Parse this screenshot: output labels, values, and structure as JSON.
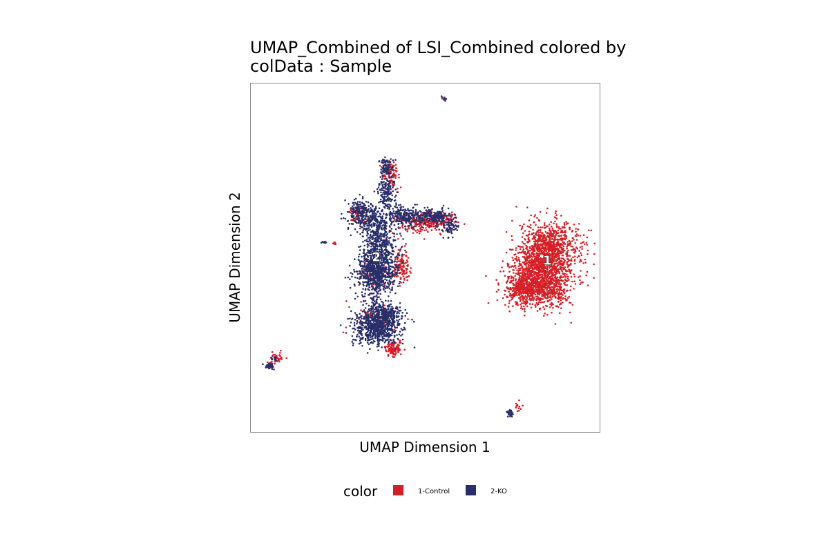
{
  "chart_data": {
    "type": "scatter",
    "title_line1": "UMAP_Combined of LSI_Combined  colored by",
    "title_line2": "colData :  Sample",
    "xlabel": "UMAP Dimension 1",
    "ylabel": "UMAP Dimension 2",
    "xlim": [
      0,
      100
    ],
    "ylim": [
      0,
      100
    ],
    "grid": false,
    "legend": {
      "title": "color",
      "position": "bottom",
      "entries": [
        {
          "name": "1-Control",
          "color": "#D51F26"
        },
        {
          "name": "2-KO",
          "color": "#272E6A"
        }
      ]
    },
    "cluster_labels": [
      {
        "text": "1",
        "x": 85,
        "y": 48
      },
      {
        "text": "2",
        "x": 36,
        "y": 49
      }
    ],
    "series": [
      {
        "name": "1-Control",
        "color": "#D51F26",
        "clusters": [
          {
            "cx": 86,
            "cy": 53,
            "sx": 4.2,
            "sy": 3.6,
            "n": 900
          },
          {
            "cx": 83,
            "cy": 42,
            "sx": 4.5,
            "sy": 3.2,
            "n": 800
          },
          {
            "cx": 78,
            "cy": 41,
            "sx": 2.0,
            "sy": 2.0,
            "n": 200
          },
          {
            "cx": 82,
            "cy": 47,
            "sx": 4.0,
            "sy": 3.5,
            "n": 500
          },
          {
            "cx": 43,
            "cy": 48,
            "sx": 1.2,
            "sy": 2.2,
            "n": 140
          },
          {
            "cx": 49,
            "cy": 60,
            "sx": 3.5,
            "sy": 1.6,
            "n": 220
          },
          {
            "cx": 55,
            "cy": 61,
            "sx": 2.0,
            "sy": 1.3,
            "n": 80
          },
          {
            "cx": 40,
            "cy": 74,
            "sx": 1.3,
            "sy": 2.0,
            "n": 100
          },
          {
            "cx": 41,
            "cy": 24,
            "sx": 1.2,
            "sy": 1.2,
            "n": 110
          },
          {
            "cx": 31,
            "cy": 62,
            "sx": 1.6,
            "sy": 1.5,
            "n": 60
          },
          {
            "cx": 35,
            "cy": 33,
            "sx": 3.0,
            "sy": 2.5,
            "n": 80
          },
          {
            "cx": 36,
            "cy": 46,
            "sx": 2.5,
            "sy": 3.5,
            "n": 90
          },
          {
            "cx": 7.5,
            "cy": 21.5,
            "sx": 1.0,
            "sy": 0.8,
            "n": 35
          },
          {
            "cx": 5.5,
            "cy": 19.5,
            "sx": 0.4,
            "sy": 0.4,
            "n": 8
          },
          {
            "cx": 24,
            "cy": 54,
            "sx": 0.3,
            "sy": 0.2,
            "n": 8
          },
          {
            "cx": 76.5,
            "cy": 7.5,
            "sx": 0.4,
            "sy": 0.8,
            "n": 12
          },
          {
            "cx": 55.5,
            "cy": 95.5,
            "sx": 0.4,
            "sy": 0.3,
            "n": 5
          }
        ]
      },
      {
        "name": "2-KO",
        "color": "#272E6A",
        "clusters": [
          {
            "cx": 36,
            "cy": 46,
            "sx": 2.8,
            "sy": 3.0,
            "n": 750
          },
          {
            "cx": 36,
            "cy": 30,
            "sx": 3.5,
            "sy": 2.5,
            "n": 650
          },
          {
            "cx": 39,
            "cy": 34,
            "sx": 2.0,
            "sy": 1.5,
            "n": 200
          },
          {
            "cx": 36,
            "cy": 36,
            "sx": 1.0,
            "sy": 2.0,
            "n": 60
          },
          {
            "cx": 37,
            "cy": 55,
            "sx": 2.5,
            "sy": 3.0,
            "n": 320
          },
          {
            "cx": 34,
            "cy": 61,
            "sx": 3.0,
            "sy": 2.0,
            "n": 260
          },
          {
            "cx": 44,
            "cy": 62,
            "sx": 2.5,
            "sy": 1.5,
            "n": 230
          },
          {
            "cx": 52,
            "cy": 62,
            "sx": 2.5,
            "sy": 1.0,
            "n": 180
          },
          {
            "cx": 57,
            "cy": 59,
            "sx": 1.5,
            "sy": 1.5,
            "n": 80
          },
          {
            "cx": 39,
            "cy": 69,
            "sx": 1.2,
            "sy": 2.5,
            "n": 150
          },
          {
            "cx": 39,
            "cy": 76,
            "sx": 1.0,
            "sy": 1.3,
            "n": 80
          },
          {
            "cx": 31,
            "cy": 64,
            "sx": 1.5,
            "sy": 1.5,
            "n": 80
          },
          {
            "cx": 5.5,
            "cy": 19,
            "sx": 0.7,
            "sy": 0.5,
            "n": 40
          },
          {
            "cx": 6.5,
            "cy": 21,
            "sx": 0.5,
            "sy": 0.5,
            "n": 12
          },
          {
            "cx": 21,
            "cy": 54.5,
            "sx": 0.3,
            "sy": 0.2,
            "n": 10
          },
          {
            "cx": 74.5,
            "cy": 5.5,
            "sx": 0.5,
            "sy": 0.5,
            "n": 25
          },
          {
            "cx": 55.5,
            "cy": 95.5,
            "sx": 0.4,
            "sy": 0.3,
            "n": 10
          }
        ]
      }
    ]
  }
}
